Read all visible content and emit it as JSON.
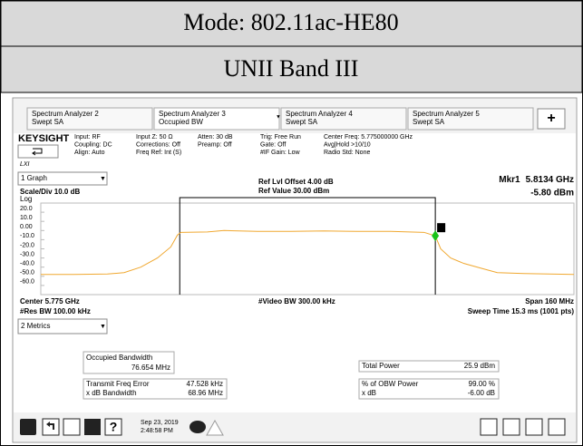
{
  "header": {
    "mode": "Mode: 802.11ac-HE80",
    "band": "UNII Band III"
  },
  "tabs": [
    {
      "title": "Spectrum Analyzer 2",
      "mode": "Swept SA"
    },
    {
      "title": "Spectrum Analyzer 3",
      "mode": "Occupied BW"
    },
    {
      "title": "Spectrum Analyzer 4",
      "mode": "Swept SA"
    },
    {
      "title": "Spectrum Analyzer 5",
      "mode": "Swept SA"
    }
  ],
  "add_tab": "+",
  "brand": "KEYSIGHT",
  "lxi": "LXI",
  "settings": [
    [
      "Input: RF",
      "Coupling: DC",
      "Align: Auto"
    ],
    [
      "Input Z: 50 Ω",
      "Corrections: Off",
      "Freq Ref: Int (S)"
    ],
    [
      "Atten: 30 dB",
      "Preamp: Off"
    ],
    [
      "Trig: Free Run",
      "Gate: Off",
      "#IF Gain: Low"
    ],
    [
      "Center Freq: 5.775000000 GHz",
      "Avg|Hold >10/10",
      "Radio Std: None"
    ]
  ],
  "graph_select": "1 Graph",
  "chart_data": {
    "type": "line",
    "ref_offset": "Ref Lvl Offset 4.00 dB",
    "ref_value": "Ref Value 30.00 dBm",
    "scale": "Scale/Div 10.0 dB",
    "scale_type": "Log",
    "marker": {
      "label": "Mkr1",
      "freq": "5.8134 GHz",
      "level": "-5.80 dBm",
      "number": "1",
      "x": 5813.4,
      "value": -5.8
    },
    "center": "Center 5.775 GHz",
    "rbw": "#Res BW 100.00 kHz",
    "vbw": "#Video BW 300.00 kHz",
    "span": "Span 160 MHz",
    "sweep": "Sweep Time 15.3 ms (1001 pts)",
    "xlim": [
      5695,
      5855
    ],
    "ylim": [
      -70,
      30
    ],
    "yticks": [
      {
        "value": 20,
        "label": "20.0"
      },
      {
        "value": 10,
        "label": "10.0"
      },
      {
        "value": 0,
        "label": "0.00"
      },
      {
        "value": -10,
        "label": "-10.0"
      },
      {
        "value": -20,
        "label": "-20.0"
      },
      {
        "value": -30,
        "label": "-30.0"
      },
      {
        "value": -40,
        "label": "-40.0"
      },
      {
        "value": -50,
        "label": "-50.0"
      },
      {
        "value": -60,
        "label": "-60.0"
      }
    ],
    "obw_edges": [
      5736.7,
      5813.4
    ],
    "color": "#f0a830",
    "x": [
      5695,
      5705,
      5715,
      5720,
      5725,
      5730,
      5734,
      5736,
      5737,
      5745,
      5750,
      5760,
      5770,
      5780,
      5790,
      5800,
      5810,
      5813.4,
      5815,
      5818,
      5822,
      5828,
      5832,
      5840,
      5855
    ],
    "values": [
      -48,
      -48,
      -47.5,
      -46,
      -40,
      -30,
      -18,
      -5,
      -2,
      -1.5,
      0,
      -1,
      -1,
      -0.5,
      -1,
      -1,
      -2,
      -5.8,
      -20,
      -30,
      -36,
      -42,
      -46,
      -47,
      -48
    ]
  },
  "metrics_select": "2 Metrics",
  "metrics": {
    "obw": {
      "label": "Occupied Bandwidth",
      "value": "76.654 MHz"
    },
    "left": [
      [
        "Transmit Freq Error",
        "47.528 kHz"
      ],
      [
        "x dB Bandwidth",
        "68.96 MHz"
      ]
    ],
    "right": [
      [
        "Total Power",
        "25.9 dBm"
      ],
      [
        "% of OBW Power",
        "99.00 %"
      ],
      [
        "x dB",
        "-6.00 dB"
      ]
    ]
  },
  "taskbar": {
    "date": "Sep 23, 2019",
    "time": "2:48:58 PM"
  }
}
